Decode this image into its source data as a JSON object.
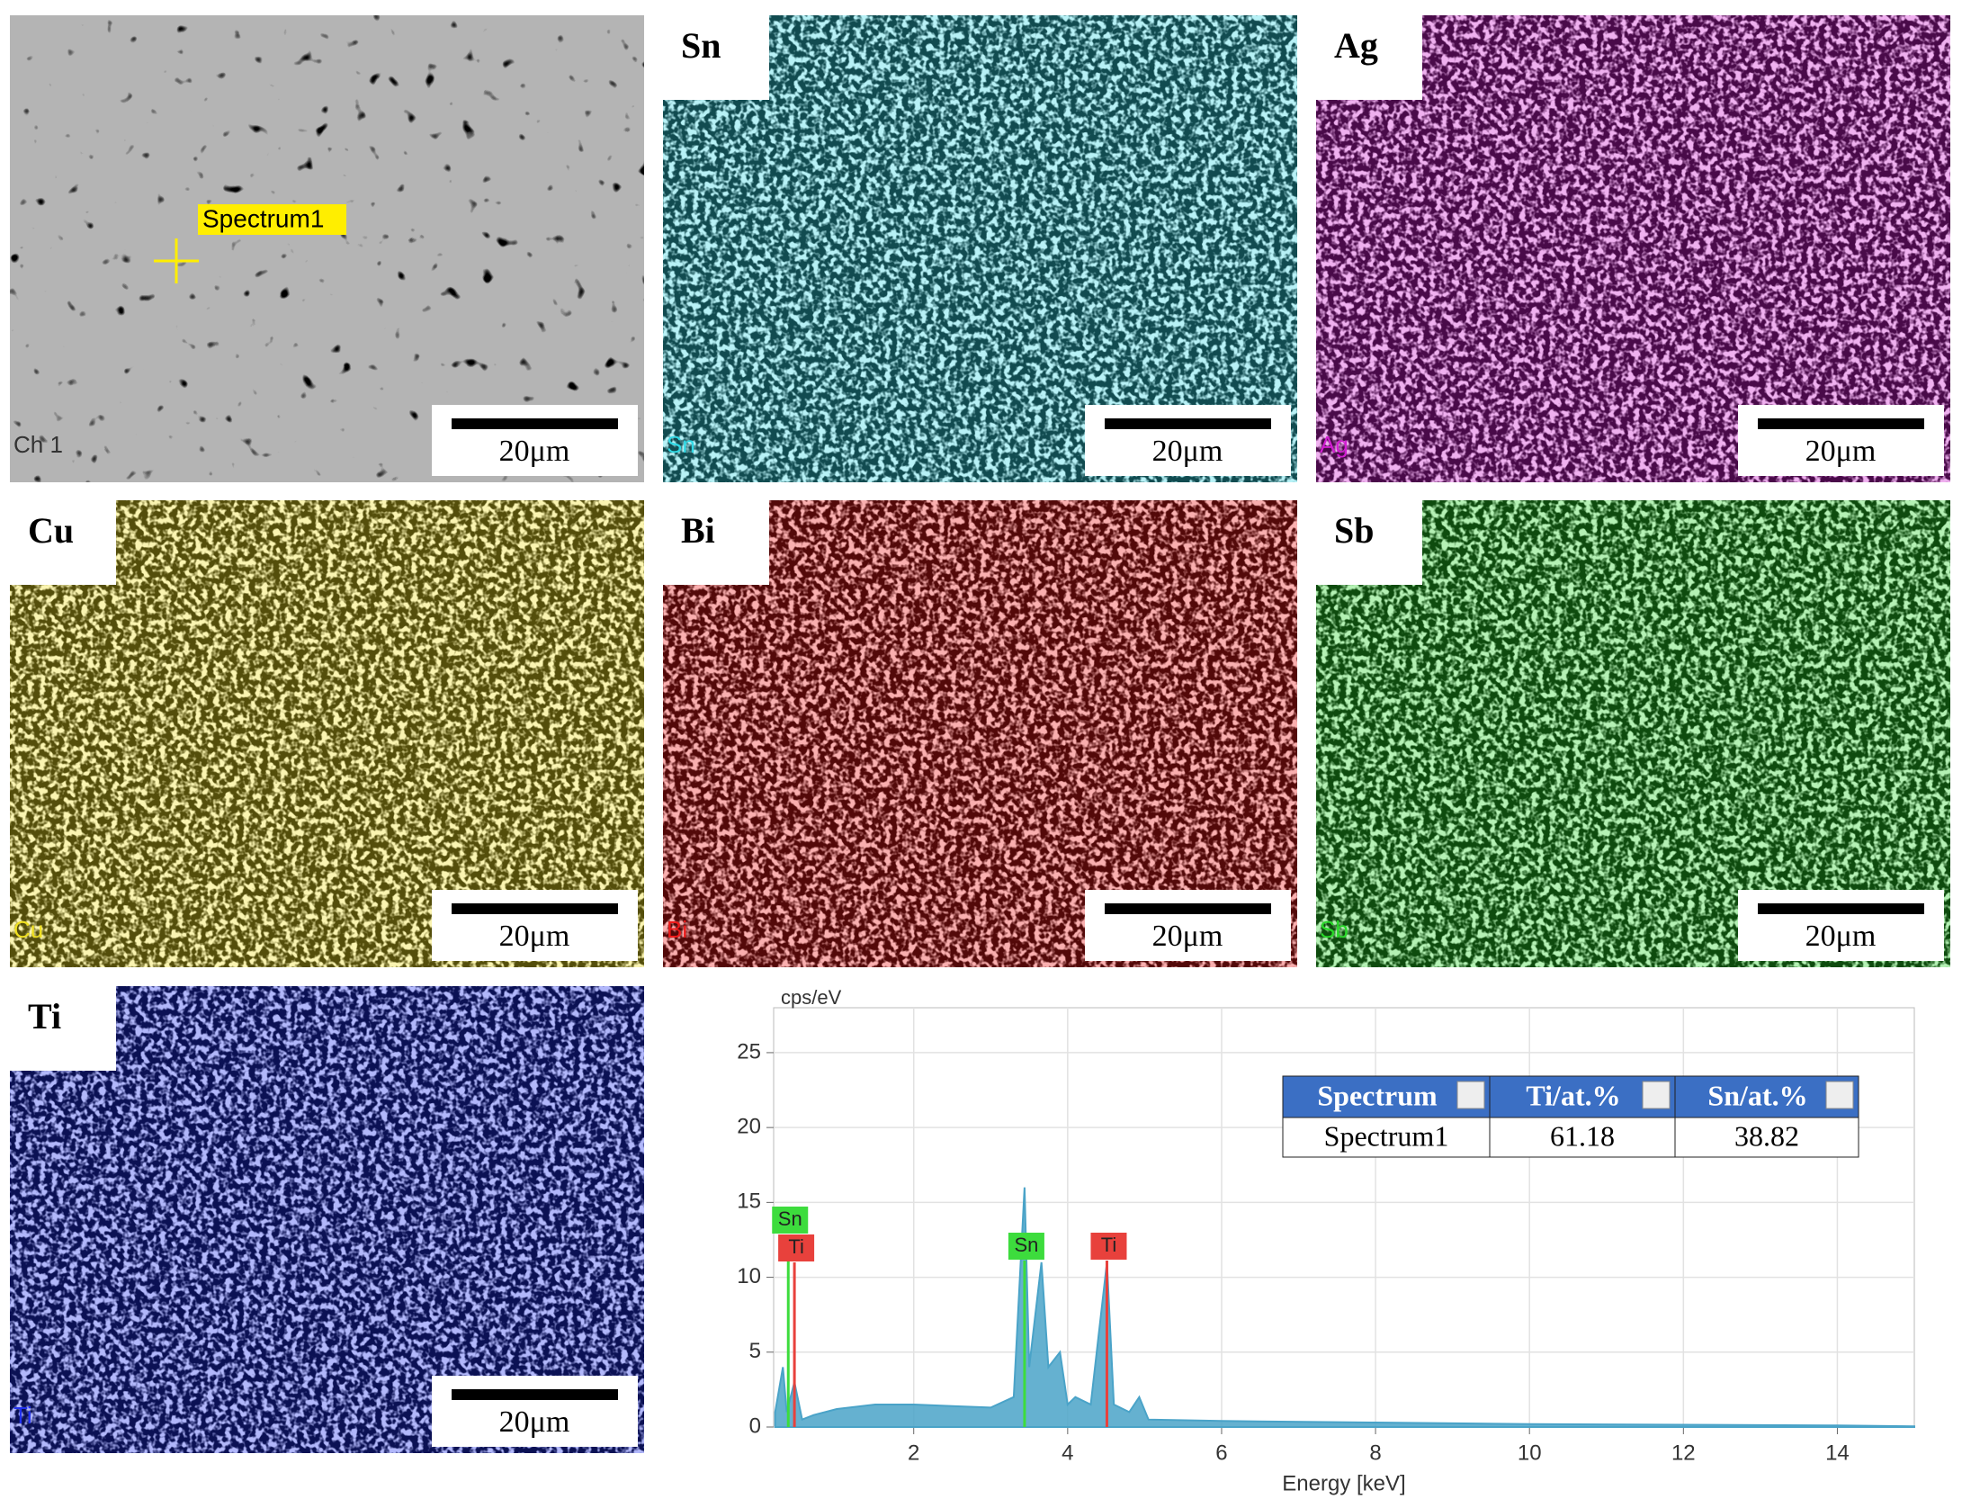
{
  "panels": [
    {
      "corner_label": "Ch 1",
      "scale_bar": "20μm",
      "color": "#b4b4b4",
      "annotation": "Spectrum1"
    },
    {
      "element": "Sn",
      "corner_label": "Sn",
      "scale_bar": "20μm",
      "color": "#30d8e4"
    },
    {
      "element": "Ag",
      "corner_label": "Ag",
      "scale_bar": "20μm",
      "color": "#d21ed2"
    },
    {
      "element": "Cu",
      "corner_label": "Cu",
      "scale_bar": "20μm",
      "color": "#f0e020"
    },
    {
      "element": "Bi",
      "corner_label": "Bi",
      "scale_bar": "20μm",
      "color": "#ee1a1a"
    },
    {
      "element": "Sb",
      "corner_label": "Sb",
      "scale_bar": "20μm",
      "color": "#28d828"
    },
    {
      "element": "Ti",
      "corner_label": "Ti",
      "scale_bar": "20μm",
      "color": "#2030f0"
    }
  ],
  "chart_data": {
    "type": "area",
    "ylabel": "cps/eV",
    "xlabel": "Energy [keV]",
    "x": [
      0.2,
      0.3,
      0.35,
      0.45,
      0.55,
      0.7,
      1.0,
      1.5,
      2.0,
      2.5,
      3.0,
      3.3,
      3.44,
      3.5,
      3.66,
      3.75,
      3.9,
      4.0,
      4.1,
      4.3,
      4.51,
      4.6,
      4.8,
      4.93,
      5.05,
      6,
      8,
      10,
      12,
      14,
      15
    ],
    "values": [
      1,
      4,
      1,
      3,
      0.5,
      0.8,
      1.2,
      1.5,
      1.5,
      1.4,
      1.3,
      2,
      16,
      4,
      11,
      4,
      5,
      1.5,
      2,
      1.5,
      11,
      1.5,
      1,
      2,
      0.5,
      0.4,
      0.3,
      0.2,
      0.15,
      0.1,
      0.05
    ],
    "color": "#4aa3c8",
    "xlim": [
      0.18,
      15
    ],
    "ylim": [
      0,
      28
    ],
    "xticks": [
      2,
      4,
      6,
      8,
      10,
      12,
      14
    ],
    "yticks": [
      0,
      5,
      10,
      15,
      20,
      25
    ],
    "grid": true,
    "peak_markers": [
      {
        "label": "Sn",
        "x": 0.37,
        "color": "#3ddc3d"
      },
      {
        "label": "Ti",
        "x": 0.45,
        "color": "#e8413c"
      },
      {
        "label": "Sn",
        "x": 3.44,
        "color": "#3ddc3d"
      },
      {
        "label": "Ti",
        "x": 4.51,
        "color": "#e8413c"
      }
    ],
    "table": {
      "header": [
        "Spectrum",
        "Ti/at.%",
        "Sn/at.%"
      ],
      "rows": [
        [
          "Spectrum1",
          61.18,
          38.82
        ]
      ]
    }
  }
}
